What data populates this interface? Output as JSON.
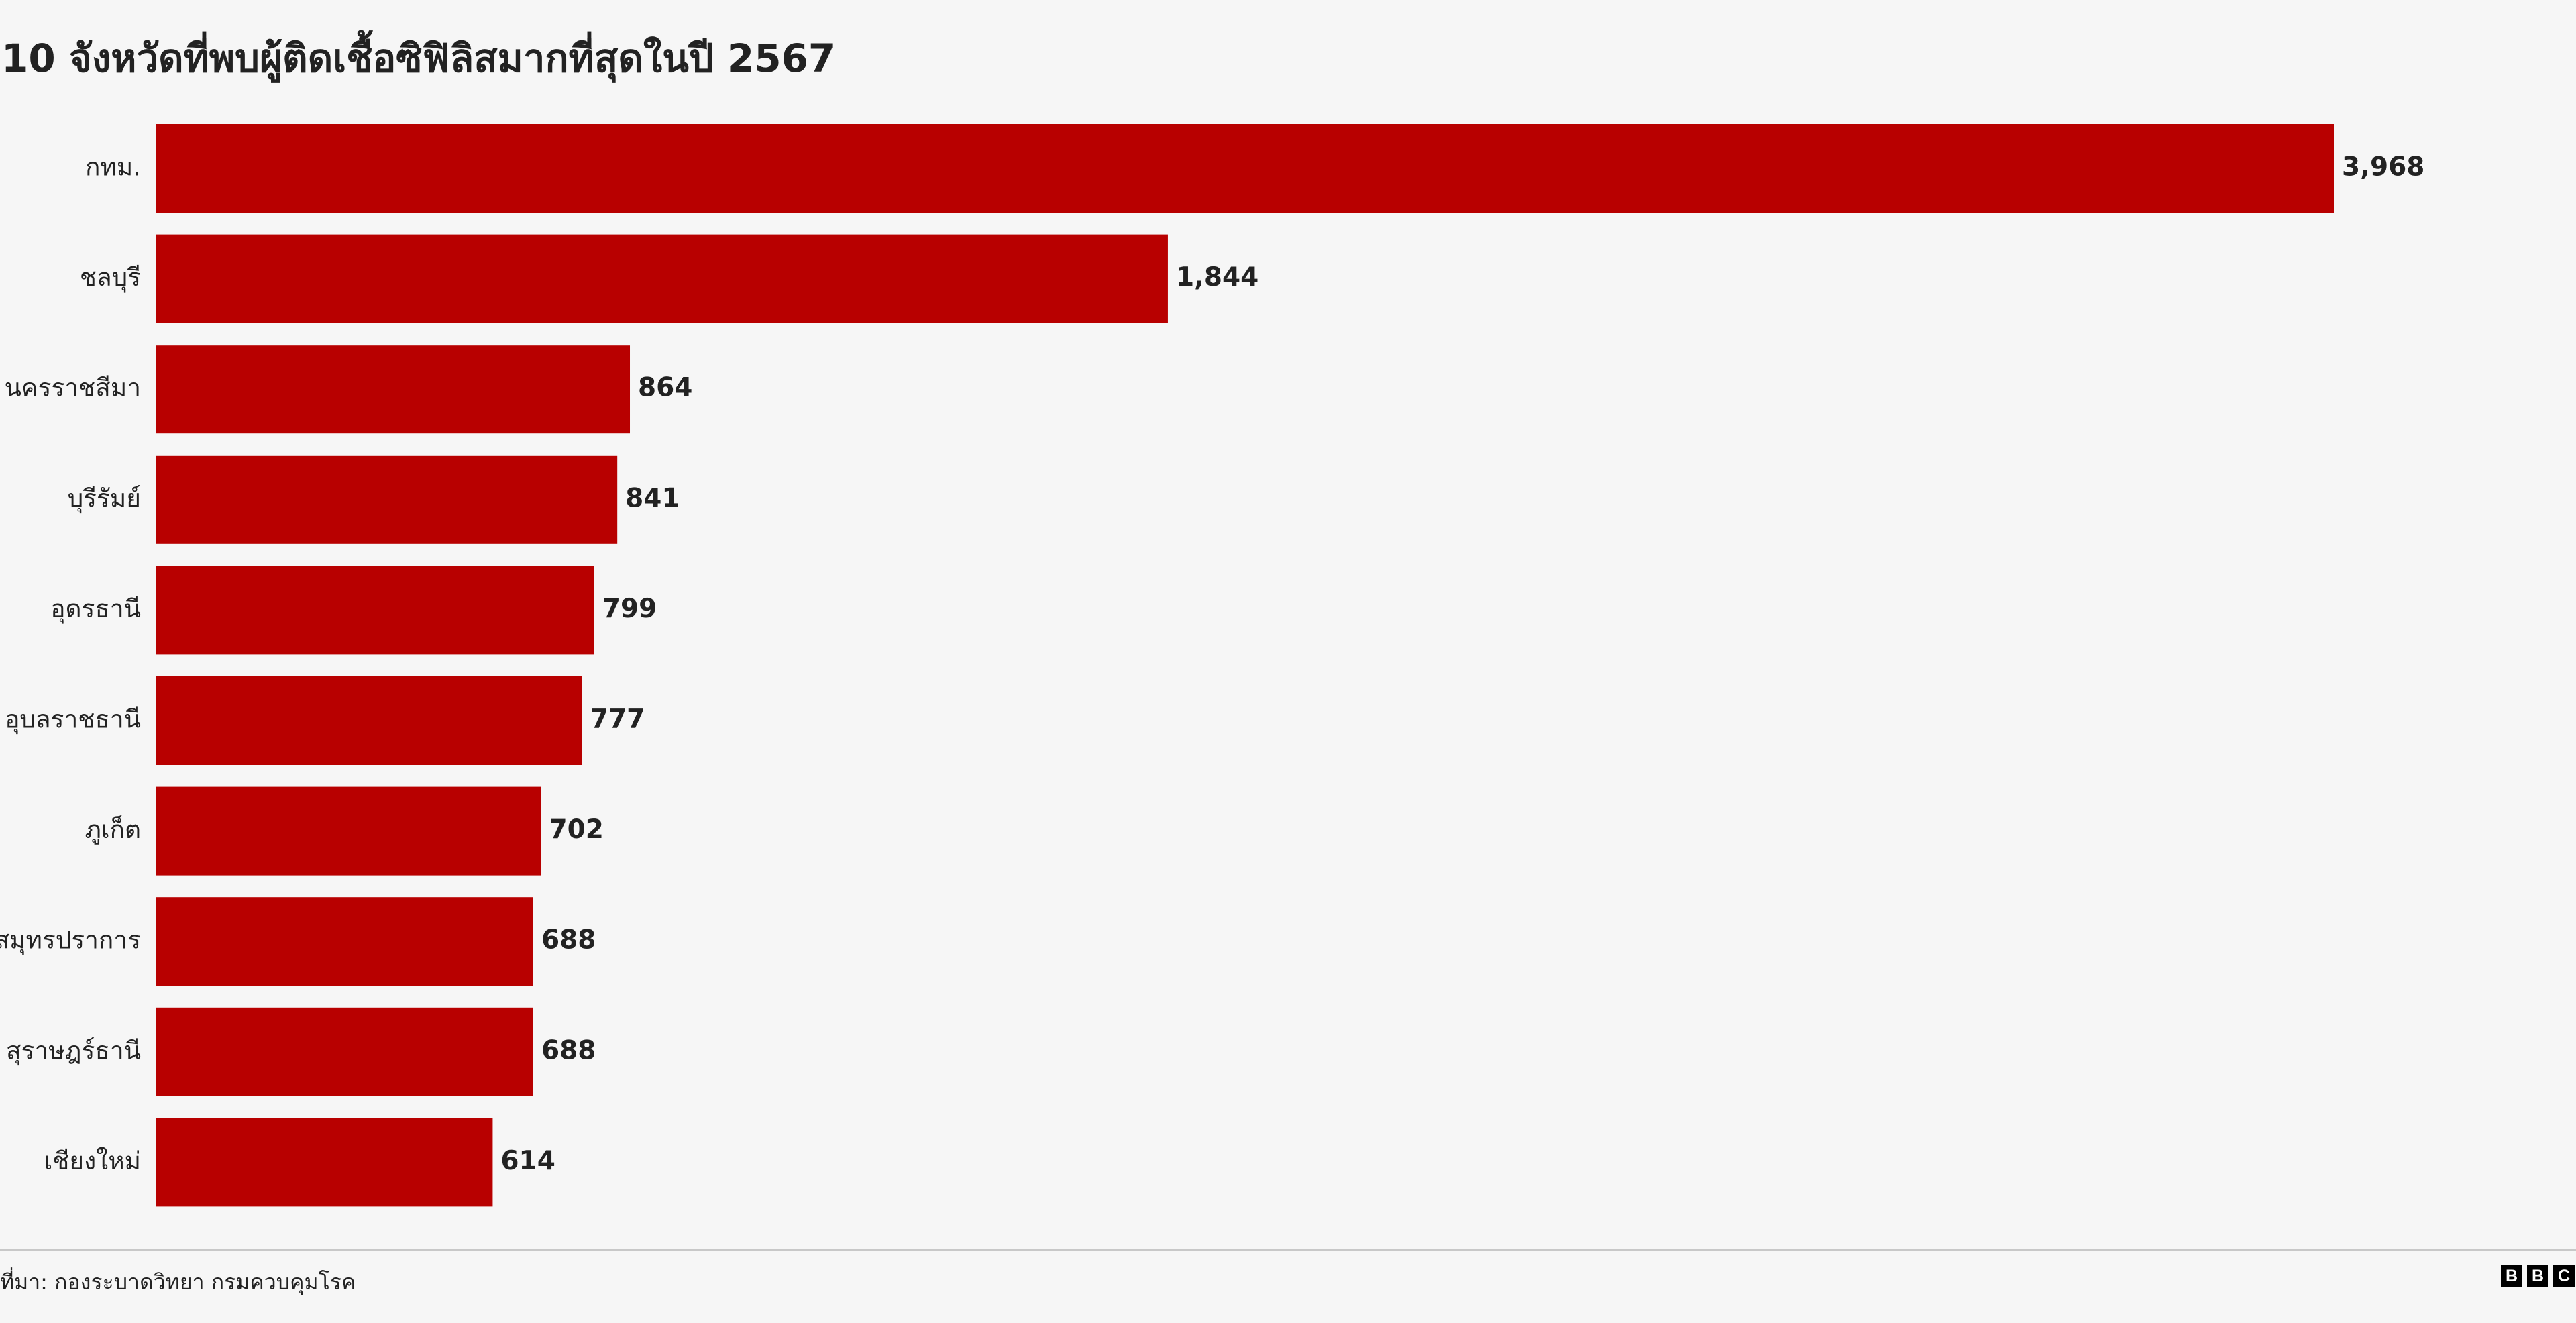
{
  "chart_data": {
    "type": "bar",
    "orientation": "horizontal",
    "title": "10 จังหวัดที่พบผู้ติดเชื้อซิฟิลิสมากที่สุดในปี 2567",
    "categories": [
      "กทม.",
      "ชลบุรี",
      "นครราชสีมา",
      "บุรีรัมย์",
      "อุดรธานี",
      "อุบลราชธานี",
      "ภูเก็ต",
      "สมุทรปราการ",
      "สุราษฎร์ธานี",
      "เชียงใหม่"
    ],
    "values": [
      3968,
      1844,
      864,
      841,
      799,
      777,
      702,
      688,
      688,
      614
    ],
    "value_labels": [
      "3,968",
      "1,844",
      "864",
      "841",
      "799",
      "777",
      "702",
      "688",
      "688",
      "614"
    ],
    "bar_color": "#b80000",
    "xlim": [
      0,
      3968
    ],
    "grid": false,
    "data_labels": true
  },
  "footer": {
    "source": "ที่มา: กองระบาดวิทยา กรมควบคุมโรค",
    "logo_letters": [
      "B",
      "B",
      "C"
    ]
  }
}
